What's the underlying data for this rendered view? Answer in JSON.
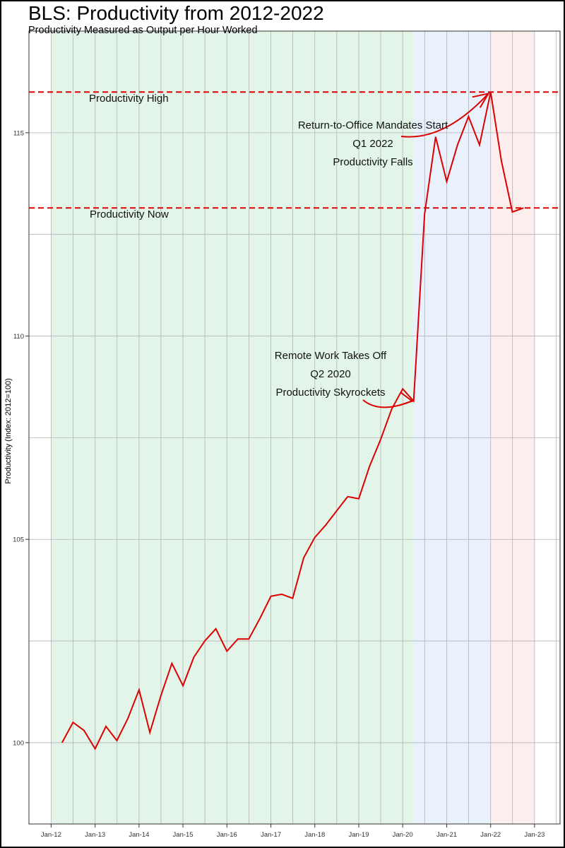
{
  "chart_data": {
    "type": "line",
    "title": "BLS:  Productivity from 2012-2022",
    "subtitle": "Productivity Measured as Output per Hour Worked",
    "xlabel": "",
    "ylabel": "Productivity (Index: 2012=100)",
    "xlim": [
      "2011-07-01",
      "2023-08-01"
    ],
    "ylim": [
      98,
      117.5
    ],
    "x_ticks": [
      "2012-01-01",
      "2013-01-01",
      "2014-01-01",
      "2015-01-01",
      "2016-01-01",
      "2017-01-01",
      "2018-01-01",
      "2019-01-01",
      "2020-01-01",
      "2021-01-01",
      "2022-01-01",
      "2023-01-01"
    ],
    "x_tick_labels": [
      "Jan-12",
      "Jan-13",
      "Jan-14",
      "Jan-15",
      "Jan-16",
      "Jan-17",
      "Jan-18",
      "Jan-19",
      "Jan-20",
      "Jan-21",
      "Jan-22",
      "Jan-23"
    ],
    "y_ticks": [
      100,
      105,
      110,
      115
    ],
    "y_tick_labels": [
      "100",
      "105",
      "110",
      "115"
    ],
    "grid": true,
    "line_color": "#dd0000",
    "series": [
      {
        "x": [
          "2012-04-01",
          "2012-07-01",
          "2012-10-01",
          "2013-01-01",
          "2013-04-01",
          "2013-07-01",
          "2013-10-01",
          "2014-01-01",
          "2014-04-01",
          "2014-07-01",
          "2014-10-01",
          "2015-01-01",
          "2015-04-01",
          "2015-07-01",
          "2015-10-01",
          "2016-01-01",
          "2016-04-01",
          "2016-07-01",
          "2016-10-01",
          "2017-01-01",
          "2017-04-01",
          "2017-07-01",
          "2017-10-01",
          "2018-01-01",
          "2018-04-01",
          "2018-07-01",
          "2018-10-01",
          "2019-01-01",
          "2019-04-01",
          "2019-07-01",
          "2019-10-01",
          "2020-01-01",
          "2020-04-01",
          "2020-07-01",
          "2020-10-01",
          "2021-01-01",
          "2021-04-01",
          "2021-07-01",
          "2021-10-01",
          "2022-01-01",
          "2022-04-01",
          "2022-07-01",
          "2022-10-01"
        ],
        "values": [
          100.0,
          100.5,
          100.3,
          99.85,
          100.4,
          100.05,
          100.6,
          101.3,
          100.25,
          101.15,
          101.95,
          101.4,
          102.1,
          102.5,
          102.8,
          102.25,
          102.55,
          102.55,
          103.05,
          103.6,
          103.65,
          103.55,
          104.55,
          105.05,
          105.35,
          105.7,
          106.05,
          106.0,
          106.8,
          107.45,
          108.2,
          108.7,
          108.4,
          113.0,
          114.9,
          113.8,
          114.7,
          115.4,
          114.7,
          116.0,
          114.3,
          113.05,
          113.15
        ]
      }
    ],
    "shaded_regions": [
      {
        "from": "2012-01-01",
        "to": "2020-04-01",
        "color": "#e3f5e9"
      },
      {
        "from": "2020-04-01",
        "to": "2022-01-01",
        "color": "#e9f1fd"
      },
      {
        "from": "2022-01-01",
        "to": "2023-01-01",
        "color": "#fdeeee"
      }
    ],
    "reference_lines": [
      {
        "value": 116.0,
        "style": "dashed",
        "color": "#dd0000"
      },
      {
        "value": 113.15,
        "style": "dashed",
        "color": "#dd0000"
      }
    ],
    "annotations": [
      {
        "id": "productivity-high-label",
        "lines": [
          "Productivity High"
        ]
      },
      {
        "id": "productivity-now-label",
        "lines": [
          "Productivity Now"
        ]
      },
      {
        "id": "rto-label",
        "lines": [
          "Return-to-Office Mandates Start",
          "Q1 2022",
          "Productivity Falls"
        ]
      },
      {
        "id": "remote-label",
        "lines": [
          "Remote Work Takes Off",
          "Q2 2020",
          "Productivity Skyrockets"
        ]
      }
    ]
  }
}
